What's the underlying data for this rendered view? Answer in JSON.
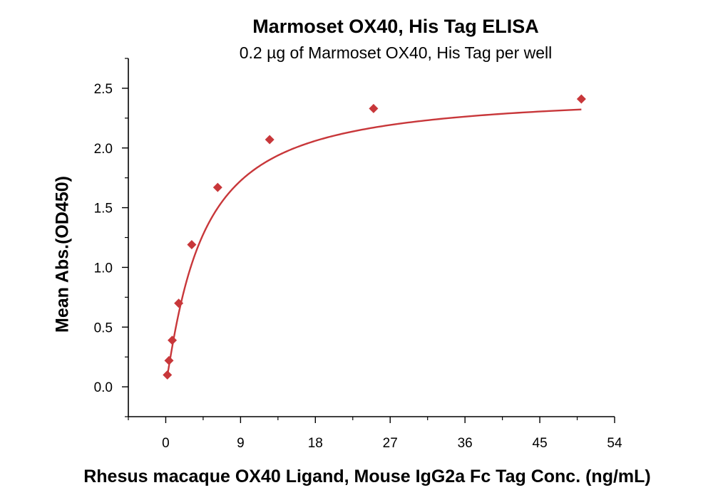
{
  "chart_data": {
    "type": "scatter",
    "title": "Marmoset OX40, His Tag ELISA",
    "subtitle": "0.2 µg of Marmoset OX40, His Tag per well",
    "xlabel": "Rhesus macaque OX40 Ligand, Mouse IgG2a Fc Tag Conc. (ng/mL)",
    "ylabel": "Mean Abs.(OD450)",
    "xlim": [
      -4.5,
      54
    ],
    "ylim": [
      -0.25,
      2.75
    ],
    "xticks": [
      "0",
      "9",
      "18",
      "27",
      "36",
      "45",
      "54"
    ],
    "yticks": [
      "0.0",
      "0.5",
      "1.0",
      "1.5",
      "2.0",
      "2.5"
    ],
    "grid": false,
    "colors": {
      "series": "#c8373a"
    },
    "series": [
      {
        "x": [
          0.195,
          0.39,
          0.78,
          1.56,
          3.125,
          6.25,
          12.5,
          25,
          50
        ],
        "y": [
          0.1,
          0.22,
          0.39,
          0.7,
          1.19,
          1.67,
          2.07,
          2.33,
          2.41
        ],
        "fit": "4PL"
      }
    ]
  }
}
